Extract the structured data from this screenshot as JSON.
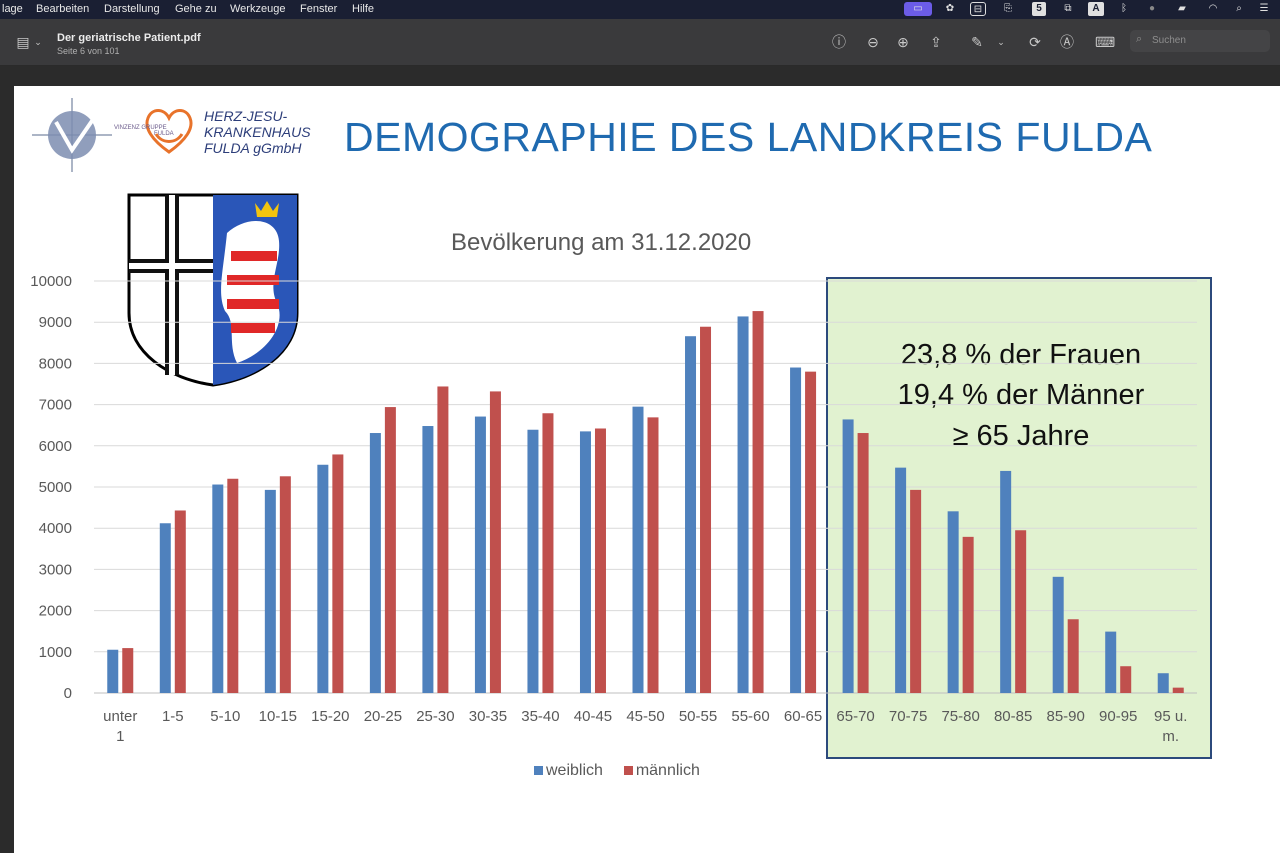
{
  "menubar": {
    "items": [
      "lage",
      "Bearbeiten",
      "Darstellung",
      "Gehe zu",
      "Werkzeuge",
      "Fenster",
      "Hilfe"
    ],
    "status_letter_s": "5",
    "status_letter_a": "A"
  },
  "toolbar": {
    "doc_title": "Der geriatrische Patient.pdf",
    "doc_subtitle": "Seite 6 von 101",
    "search_placeholder": "Suchen"
  },
  "slide": {
    "title": "DEMOGRAPHIE DES LANDKREIS FULDA",
    "hospital_line1": "HERZ-JESU-",
    "hospital_line2": "KRANKENHAUS",
    "hospital_line3": "FULDA gGmbH",
    "vinzenz_label": "VINZENZ GRUPPE",
    "vinzenz_sub": "FULDA",
    "highlight_line1": "23,8 % der Frauen",
    "highlight_line2": "19,4 % der Männer",
    "highlight_line3": "≥ 65 Jahre",
    "legend_weiblich": "weiblich",
    "legend_maennlich": "männlich"
  },
  "chart_data": {
    "type": "bar",
    "title": "Bevölkerung am 31.12.2020",
    "categories": [
      "unter 1",
      "1-5",
      "5-10",
      "10-15",
      "15-20",
      "20-25",
      "25-30",
      "30-35",
      "35-40",
      "40-45",
      "45-50",
      "50-55",
      "55-60",
      "60-65",
      "65-70",
      "70-75",
      "75-80",
      "80-85",
      "85-90",
      "90-95",
      "95 u. m."
    ],
    "series": [
      {
        "name": "weiblich",
        "color": "#4f81bd",
        "values": [
          1050,
          4120,
          5060,
          4930,
          5540,
          6310,
          6480,
          6710,
          6390,
          6350,
          6950,
          8660,
          9140,
          7900,
          6640,
          5470,
          4410,
          5390,
          2820,
          1490,
          480
        ]
      },
      {
        "name": "männlich",
        "color": "#c0504d",
        "values": [
          1090,
          4430,
          5200,
          5260,
          5790,
          6940,
          7440,
          7320,
          6790,
          6420,
          6690,
          8890,
          9270,
          7800,
          6310,
          4930,
          3790,
          3950,
          1790,
          650,
          130
        ]
      }
    ],
    "ylim": [
      0,
      10000
    ],
    "yticks": [
      0,
      1000,
      2000,
      3000,
      4000,
      5000,
      6000,
      7000,
      8000,
      9000,
      10000
    ],
    "grid": true,
    "legend": "bottom"
  }
}
